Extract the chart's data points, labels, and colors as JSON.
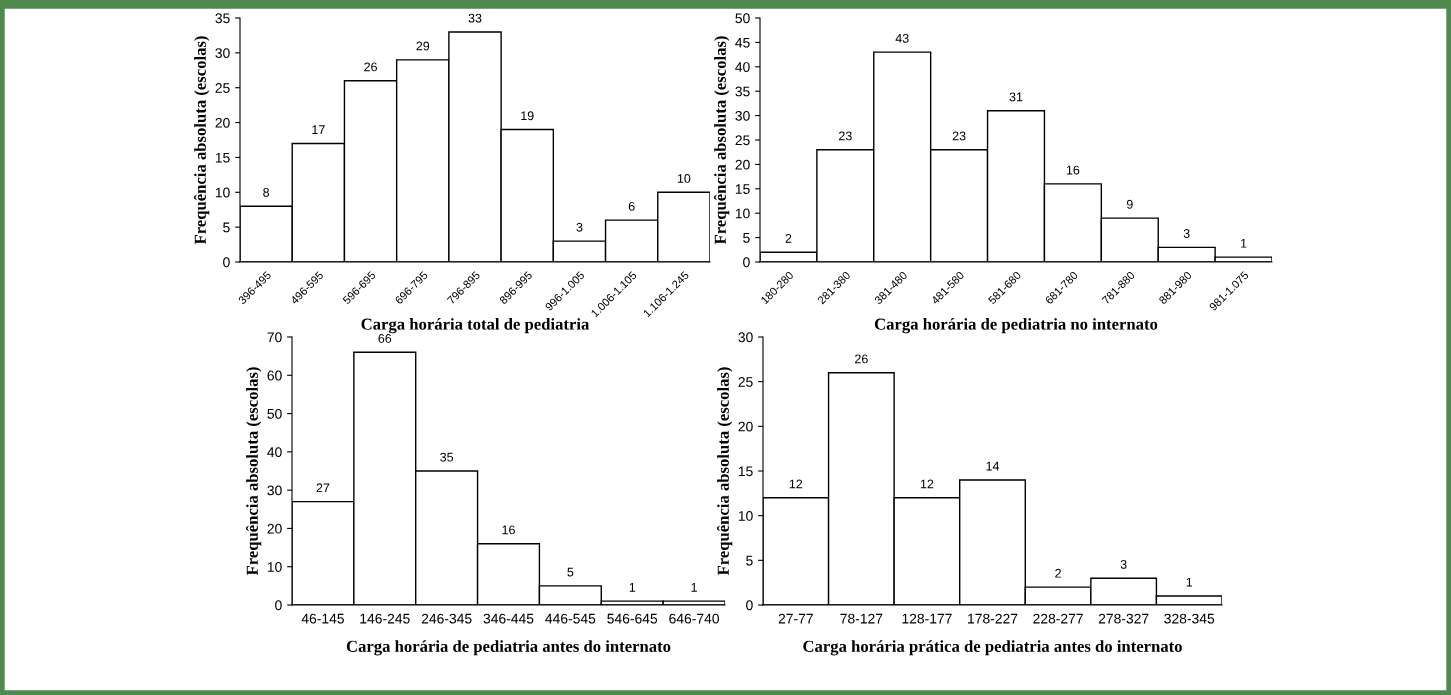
{
  "chart_data": [
    {
      "type": "bar",
      "categories": [
        "396-495",
        "496-595",
        "596-695",
        "696-795",
        "796-895",
        "896-995",
        "996-1.005",
        "1.006-1.105",
        "1.106-1.245"
      ],
      "values": [
        8,
        17,
        26,
        29,
        33,
        19,
        3,
        6,
        10
      ],
      "color": "#ffffff",
      "ylim": [
        0,
        35
      ],
      "yticks": [
        0,
        5,
        10,
        15,
        20,
        25,
        30,
        35
      ],
      "ylabel": "Frequência absoluta (escolas)",
      "xlabel": "Carga horária total de pediatria",
      "data_labels": true,
      "grid": false,
      "legend": false
    },
    {
      "type": "bar",
      "categories": [
        "180-280",
        "281-380",
        "381-480",
        "481-580",
        "581-680",
        "681-780",
        "781-880",
        "881-980",
        "981-1.075"
      ],
      "values": [
        2,
        23,
        43,
        23,
        31,
        16,
        9,
        3,
        1
      ],
      "color": "#ffffff",
      "ylim": [
        0,
        50
      ],
      "yticks": [
        0,
        5,
        10,
        15,
        20,
        25,
        30,
        35,
        40,
        45,
        50
      ],
      "ylabel": "Frequência absoluta (escolas)",
      "xlabel": "Carga horária de pediatria no internato",
      "data_labels": true,
      "grid": false,
      "legend": false
    },
    {
      "type": "bar",
      "categories": [
        "46-145",
        "146-245",
        "246-345",
        "346-445",
        "446-545",
        "546-645",
        "646-740"
      ],
      "values": [
        27,
        66,
        35,
        16,
        5,
        1,
        1
      ],
      "color": "#ffffff",
      "ylim": [
        0,
        70
      ],
      "yticks": [
        0,
        10,
        20,
        30,
        40,
        50,
        60,
        70
      ],
      "ylabel": "Frequência absoluta (escolas)",
      "xlabel": "Carga horária de pediatria antes do internato",
      "data_labels": true,
      "grid": false,
      "legend": false
    },
    {
      "type": "bar",
      "categories": [
        "27-77",
        "78-127",
        "128-177",
        "178-227",
        "228-277",
        "278-327",
        "328-345"
      ],
      "values": [
        12,
        26,
        12,
        14,
        2,
        3,
        1
      ],
      "color": "#ffffff",
      "ylim": [
        0,
        30
      ],
      "yticks": [
        0,
        5,
        10,
        15,
        20,
        25,
        30
      ],
      "ylabel": "Frequência absoluta (escolas)",
      "xlabel": "Carga horária prática de pediatria antes do internato",
      "data_labels": true,
      "grid": false,
      "legend": false
    }
  ]
}
